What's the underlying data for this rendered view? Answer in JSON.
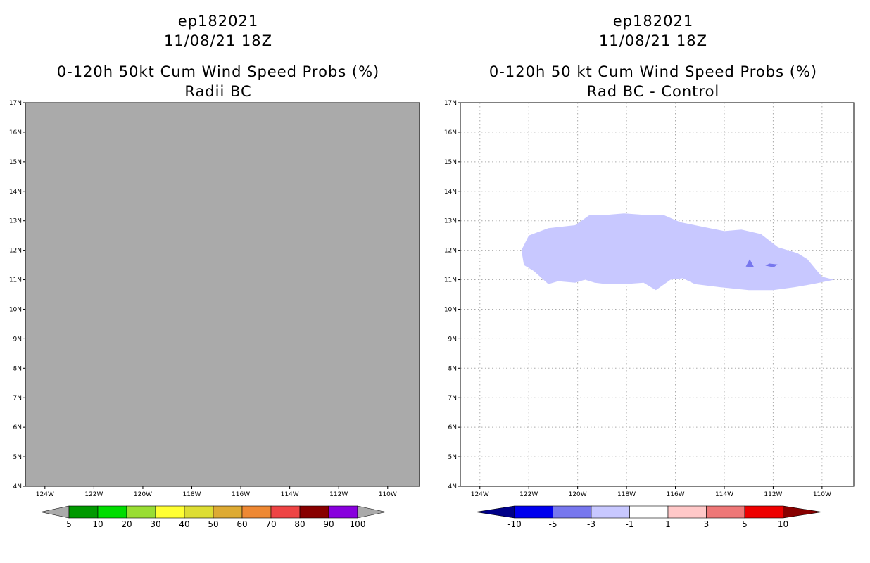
{
  "chart_data": [
    {
      "type": "heatmap",
      "storm_id": "ep182021",
      "datetime": "11/08/21 18Z",
      "title": "0-120h 50kt Cum Wind Speed Probs (%)",
      "subtitle": "Radii BC",
      "x_ticks": [
        "124W",
        "122W",
        "120W",
        "118W",
        "116W",
        "114W",
        "112W",
        "110W"
      ],
      "y_ticks": [
        "4N",
        "5N",
        "6N",
        "7N",
        "8N",
        "9N",
        "10N",
        "11N",
        "12N",
        "13N",
        "14N",
        "15N",
        "16N",
        "17N"
      ],
      "xlim": [
        -124.8,
        -108.7
      ],
      "ylim": [
        4,
        17
      ],
      "grid": false,
      "field": "no data (uniform gray)",
      "colorbar": {
        "labels": [
          "5",
          "10",
          "20",
          "30",
          "40",
          "50",
          "60",
          "70",
          "80",
          "90",
          "100"
        ],
        "colors": [
          "#009900",
          "#00dd00",
          "#99dd33",
          "#ffff33",
          "#dddd33",
          "#ddaa33",
          "#ee8833",
          "#ee4444",
          "#880000",
          "#8800dd"
        ],
        "under_color": "#aaaaaa",
        "over_color": "#aaaaaa"
      }
    },
    {
      "type": "heatmap",
      "storm_id": "ep182021",
      "datetime": "11/08/21 18Z",
      "title": "0-120h 50 kt Cum Wind Speed Probs (%)",
      "subtitle": "Rad BC - Control",
      "x_ticks": [
        "124W",
        "122W",
        "120W",
        "118W",
        "116W",
        "114W",
        "112W",
        "110W"
      ],
      "y_ticks": [
        "4N",
        "5N",
        "6N",
        "7N",
        "8N",
        "9N",
        "10N",
        "11N",
        "12N",
        "13N",
        "14N",
        "15N",
        "16N",
        "17N"
      ],
      "xlim": [
        -124.8,
        -108.7
      ],
      "ylim": [
        4,
        17
      ],
      "grid": true,
      "regions": [
        {
          "name": "diff -3 to -1",
          "color": "#c8c8ff",
          "points": [
            [
              -122.3,
              12.0
            ],
            [
              -122.0,
              12.5
            ],
            [
              -121.2,
              12.75
            ],
            [
              -120.1,
              12.85
            ],
            [
              -119.5,
              13.2
            ],
            [
              -118.8,
              13.2
            ],
            [
              -118.1,
              13.25
            ],
            [
              -117.3,
              13.2
            ],
            [
              -116.5,
              13.2
            ],
            [
              -115.8,
              12.95
            ],
            [
              -114.9,
              12.8
            ],
            [
              -114.0,
              12.65
            ],
            [
              -113.3,
              12.7
            ],
            [
              -112.5,
              12.55
            ],
            [
              -111.8,
              12.1
            ],
            [
              -111.0,
              11.9
            ],
            [
              -110.6,
              11.7
            ],
            [
              -110.3,
              11.4
            ],
            [
              -110.0,
              11.1
            ],
            [
              -109.5,
              11.0
            ],
            [
              -109.8,
              10.95
            ],
            [
              -110.4,
              10.85
            ],
            [
              -111.1,
              10.75
            ],
            [
              -112.0,
              10.65
            ],
            [
              -113.0,
              10.65
            ],
            [
              -114.2,
              10.75
            ],
            [
              -115.2,
              10.85
            ],
            [
              -115.7,
              11.05
            ],
            [
              -116.2,
              11.0
            ],
            [
              -116.8,
              10.65
            ],
            [
              -117.3,
              10.9
            ],
            [
              -118.1,
              10.85
            ],
            [
              -118.8,
              10.85
            ],
            [
              -119.3,
              10.9
            ],
            [
              -119.7,
              11.0
            ],
            [
              -120.1,
              10.9
            ],
            [
              -120.8,
              10.95
            ],
            [
              -121.2,
              10.85
            ],
            [
              -121.8,
              11.3
            ],
            [
              -122.2,
              11.5
            ]
          ]
        },
        {
          "name": "diff -5 to -3",
          "color": "#7777ee",
          "points": [
            [
              -112.96,
              11.7
            ],
            [
              -113.12,
              11.45
            ],
            [
              -112.78,
              11.42
            ]
          ]
        },
        {
          "name": "diff -5 to -3",
          "color": "#7777ee",
          "points": [
            [
              -112.15,
              11.55
            ],
            [
              -112.32,
              11.48
            ],
            [
              -111.98,
              11.42
            ],
            [
              -111.82,
              11.52
            ]
          ]
        }
      ],
      "colorbar": {
        "labels": [
          "-10",
          "-5",
          "-3",
          "-1",
          "1",
          "3",
          "5",
          "10"
        ],
        "colors": [
          "#0000ee",
          "#7777ee",
          "#c8c8ff",
          "#ffffff",
          "#ffc8c8",
          "#ee7777",
          "#ee0000"
        ],
        "under_color": "#000088",
        "over_color": "#880000"
      }
    }
  ]
}
